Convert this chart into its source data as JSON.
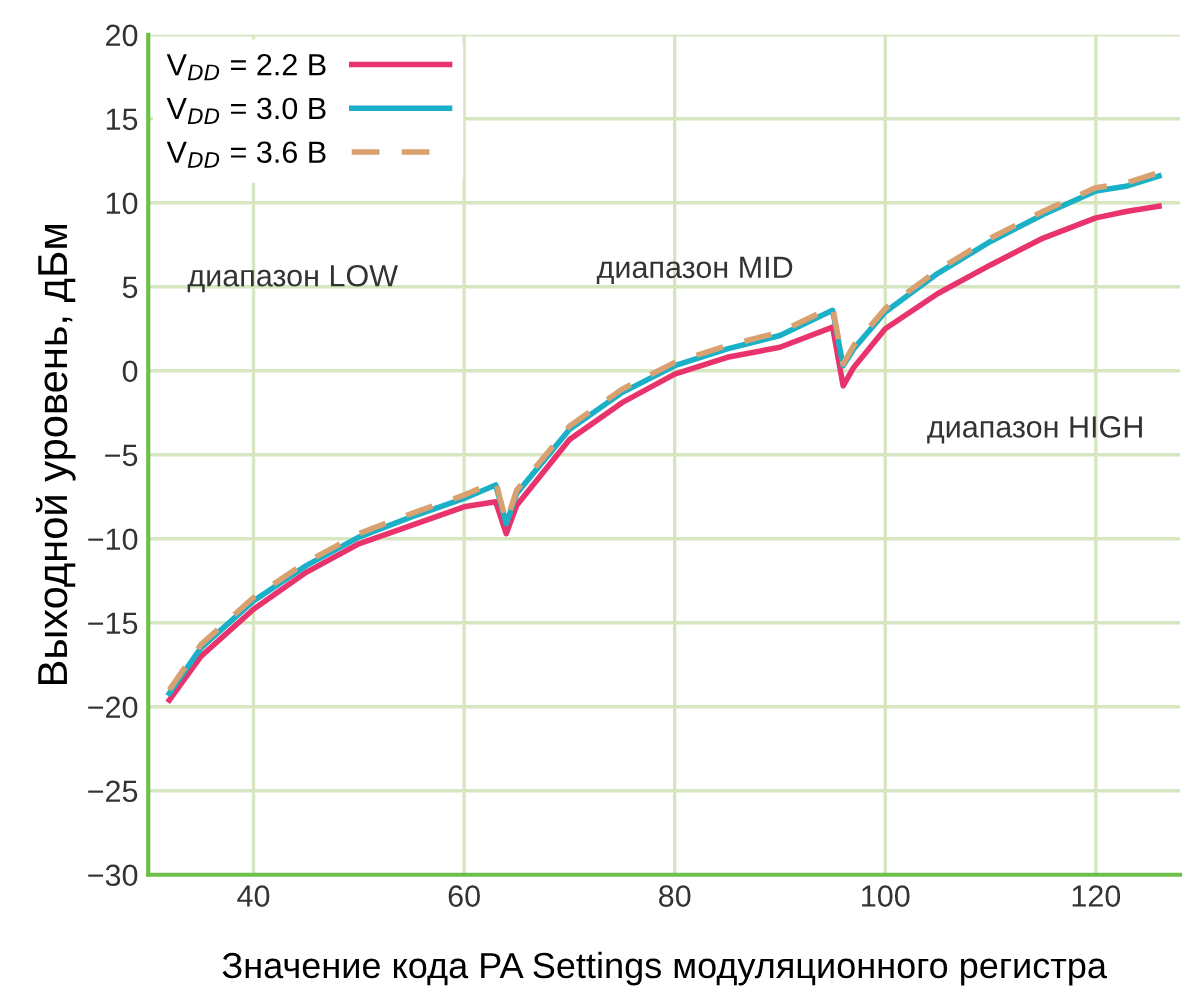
{
  "chart_data": {
    "type": "line",
    "xlabel": "Значение кода PA Settings модуляционного регистра",
    "ylabel": "Выходной уровень, дБм",
    "xlim": [
      30,
      128
    ],
    "xticks": [
      40,
      60,
      80,
      100,
      120
    ],
    "ylim": [
      -30,
      20
    ],
    "yticks": [
      -30,
      -25,
      -20,
      -15,
      -10,
      -5,
      0,
      5,
      10,
      15,
      20
    ],
    "grid": true,
    "legend": "top left",
    "marker": "none",
    "x": [
      32,
      35,
      40,
      45,
      50,
      55,
      60,
      63,
      64,
      65,
      70,
      75,
      80,
      85,
      90,
      95,
      96,
      97,
      100,
      105,
      110,
      115,
      120,
      123,
      126
    ],
    "series": [
      {
        "name": "V$_{DD}$ = 2.2 В",
        "color": "#e8336d",
        "line_style": "solid",
        "values": [
          -19.6,
          -17.0,
          -14.2,
          -12.0,
          -10.3,
          -9.2,
          -8.1,
          -7.8,
          -9.7,
          -8.0,
          -4.1,
          -1.9,
          -0.2,
          0.8,
          1.4,
          2.6,
          -0.9,
          0.2,
          2.5,
          4.6,
          6.3,
          7.9,
          9.1,
          9.5,
          9.8
        ]
      },
      {
        "name": "V$_{DD}$ = 3.0 В",
        "color": "#1ab0c8",
        "line_style": "solid",
        "values": [
          -19.2,
          -16.5,
          -13.7,
          -11.6,
          -9.9,
          -8.7,
          -7.6,
          -6.8,
          -9.1,
          -7.3,
          -3.5,
          -1.3,
          0.3,
          1.3,
          2.1,
          3.6,
          0.3,
          1.3,
          3.5,
          5.8,
          7.7,
          9.3,
          10.7,
          11.0,
          11.6
        ]
      },
      {
        "name": "V$_{DD}$ = 3.6 В",
        "color": "#d9a070",
        "line_style": "dashed",
        "values": [
          -19.0,
          -16.3,
          -13.5,
          -11.4,
          -9.7,
          -8.5,
          -7.4,
          -6.6,
          -9.0,
          -7.1,
          -3.3,
          -1.1,
          0.5,
          1.5,
          2.3,
          3.8,
          0.4,
          1.5,
          3.7,
          6.0,
          7.9,
          9.5,
          10.9,
          11.2,
          11.8
        ]
      }
    ],
    "annotations": [
      "диапазон LOW",
      "диапазон MID",
      "диапазон HIGH"
    ]
  }
}
